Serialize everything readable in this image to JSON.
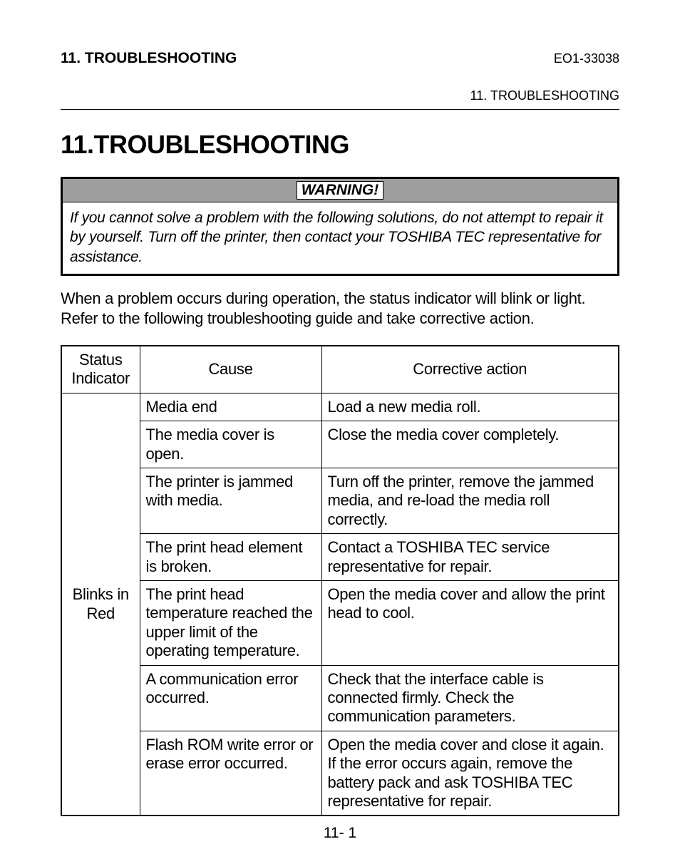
{
  "header": {
    "left": "11. TROUBLESHOOTING",
    "right": "EO1-33038",
    "sub": "11. TROUBLESHOOTING"
  },
  "title": "11.TROUBLESHOOTING",
  "warning": {
    "label": "WARNING!",
    "body": "If you cannot solve a problem with the following solutions, do not attempt to repair it by yourself.  Turn off the printer, then contact your TOSHIBA TEC representative for assistance."
  },
  "intro": "When a problem occurs during operation, the status indicator will blink or light.  Refer to the following troubleshooting guide and take corrective action.",
  "table": {
    "headers": {
      "status": "Status Indicator",
      "cause": "Cause",
      "action": "Corrective action"
    },
    "status_value": "Blinks in Red",
    "rows": [
      {
        "cause": "Media end",
        "action": "Load a new media roll."
      },
      {
        "cause": "The media cover is open.",
        "action": "Close the media cover completely."
      },
      {
        "cause": "The printer is jammed with media.",
        "action": "Turn off the printer, remove the jammed media, and re-load the media roll correctly."
      },
      {
        "cause": "The print head element is broken.",
        "action": "Contact a TOSHIBA TEC service representative for repair."
      },
      {
        "cause": "The print head temperature reached the upper limit of the operating temperature.",
        "action": "Open the media cover and allow the print head to cool."
      },
      {
        "cause": "A communication error occurred.",
        "action": "Check that the interface cable is connected firmly.  Check the communication parameters."
      },
      {
        "cause": "Flash ROM write error or erase error occurred.",
        "action": "Open the media cover and close it again.  If the error occurs again, remove the battery pack and ask TOSHIBA TEC representative for repair."
      }
    ]
  },
  "footer": "11- 1"
}
